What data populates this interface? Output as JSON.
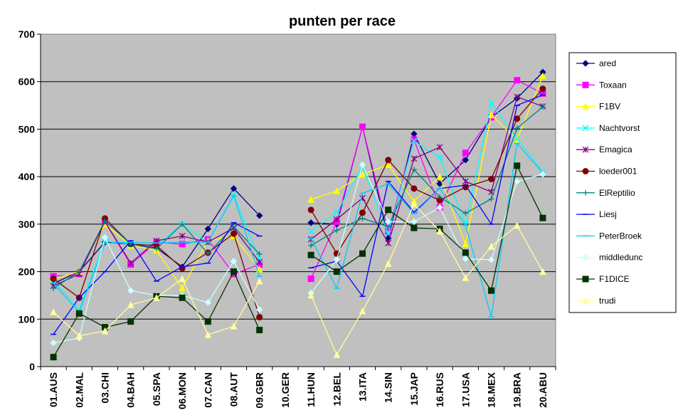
{
  "chart_data": {
    "type": "line",
    "title": "punten per race",
    "ylim": [
      0,
      700
    ],
    "yticks": [
      0,
      100,
      200,
      300,
      400,
      500,
      600,
      700
    ],
    "grid": true,
    "legend": "right",
    "categories": [
      "01.AUS",
      "02.MAL",
      "03.CHI",
      "04.BAH",
      "05.SPA",
      "06.MON",
      "07.CAN",
      "08.AUT",
      "09.GBR",
      "10.GER",
      "11.HUN",
      "12.BEL",
      "13.ITA",
      "14.SIN",
      "15.JAP",
      "16.RUS",
      "17.USA",
      "18.MEX",
      "19.BRA",
      "20.ABU"
    ],
    "series": [
      {
        "name": "ared",
        "color": "#000080",
        "marker": "diamond",
        "values": [
          175,
          200,
          262,
          258,
          250,
          210,
          290,
          375,
          318,
          null,
          303,
          300,
          505,
          270,
          490,
          385,
          435,
          525,
          565,
          620
        ]
      },
      {
        "name": "Toxaan",
        "color": "#ff00ff",
        "marker": "square",
        "values": [
          190,
          195,
          305,
          215,
          262,
          258,
          268,
          195,
          215,
          null,
          185,
          305,
          505,
          285,
          478,
          335,
          450,
          525,
          603,
          575
        ]
      },
      {
        "name": "F1BV",
        "color": "#ffff00",
        "marker": "triangle",
        "values": [
          185,
          200,
          300,
          255,
          245,
          165,
          265,
          275,
          205,
          null,
          352,
          370,
          405,
          425,
          348,
          400,
          258,
          530,
          478,
          612
        ]
      },
      {
        "name": "Nachtvorst",
        "color": "#00ffff",
        "marker": "x",
        "values": [
          180,
          120,
          265,
          258,
          255,
          300,
          262,
          362,
          225,
          null,
          285,
          325,
          420,
          280,
          475,
          440,
          300,
          555,
          480,
          410
        ]
      },
      {
        "name": "Emagica",
        "color": "#800080",
        "marker": "asterisk",
        "values": [
          170,
          195,
          305,
          218,
          265,
          275,
          262,
          292,
          220,
          null,
          268,
          310,
          355,
          260,
          438,
          462,
          390,
          368,
          568,
          548
        ]
      },
      {
        "name": "loeder001",
        "color": "#800000",
        "marker": "circle",
        "values": [
          185,
          145,
          312,
          258,
          255,
          207,
          240,
          280,
          104,
          null,
          330,
          238,
          324,
          435,
          375,
          350,
          378,
          395,
          522,
          585
        ]
      },
      {
        "name": "ElReptilio",
        "color": "#008080",
        "marker": "plus",
        "values": [
          165,
          200,
          307,
          258,
          248,
          300,
          238,
          295,
          237,
          null,
          255,
          287,
          312,
          295,
          415,
          357,
          323,
          353,
          502,
          547
        ]
      },
      {
        "name": "Liesj",
        "color": "#0000ff",
        "marker": "dash",
        "values": [
          68,
          145,
          200,
          265,
          180,
          210,
          218,
          303,
          275,
          null,
          208,
          222,
          148,
          390,
          325,
          375,
          382,
          300,
          550,
          572
        ]
      },
      {
        "name": "PeterBroek",
        "color": "#00ccff",
        "marker": "dash",
        "values": [
          175,
          115,
          260,
          262,
          260,
          262,
          262,
          360,
          190,
          null,
          270,
          165,
          365,
          385,
          322,
          375,
          298,
          105,
          470,
          408
        ]
      },
      {
        "name": "middledunc",
        "color": "#ccffff",
        "marker": "diamond",
        "values": [
          50,
          60,
          272,
          160,
          150,
          150,
          135,
          222,
          120,
          null,
          155,
          225,
          425,
          305,
          305,
          335,
          227,
          225,
          390,
          405
        ]
      },
      {
        "name": "F1DICE",
        "color": "#003300",
        "marker": "square",
        "values": [
          20,
          112,
          83,
          95,
          148,
          145,
          95,
          200,
          77,
          null,
          235,
          200,
          238,
          330,
          292,
          290,
          240,
          160,
          423,
          313
        ]
      },
      {
        "name": "trudi",
        "color": "#ffff99",
        "marker": "triangle",
        "values": [
          115,
          65,
          75,
          130,
          145,
          185,
          67,
          85,
          180,
          null,
          150,
          25,
          117,
          217,
          342,
          285,
          187,
          253,
          297,
          200
        ]
      }
    ]
  }
}
